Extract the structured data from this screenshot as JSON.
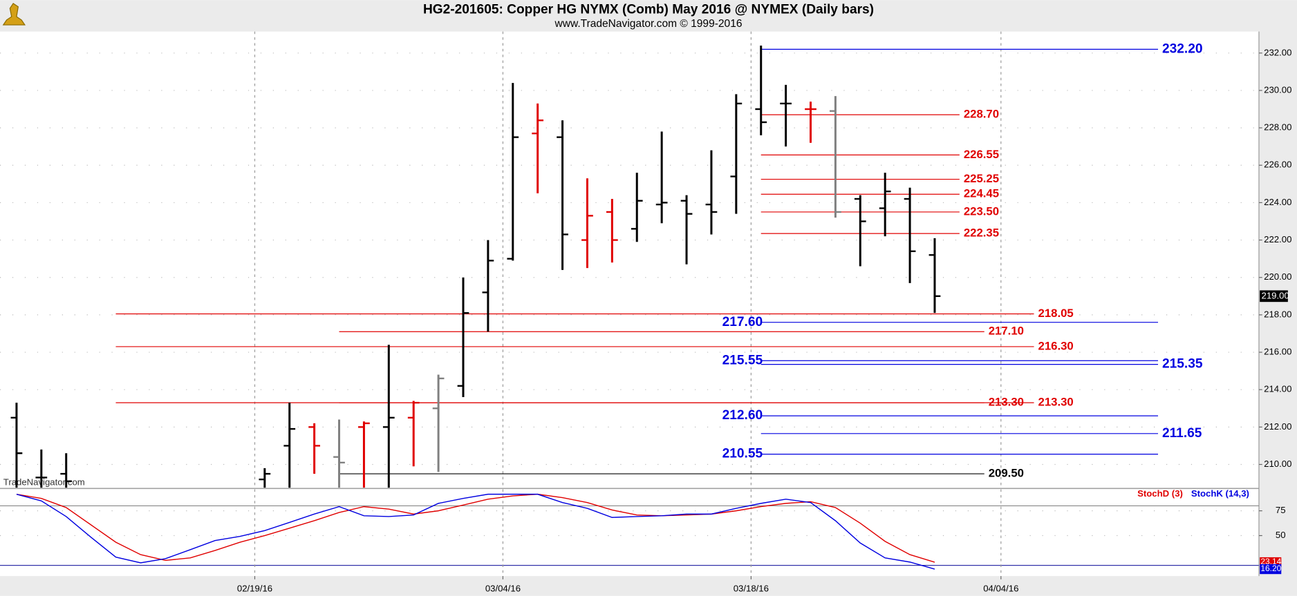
{
  "chart_data": [
    {
      "type": "ohlc",
      "title": "HG2-201605:  Copper HG NYMX (Comb) May 2016 @ NYMEX  (Daily bars)",
      "subtitle": "www.TradeNavigator.com © 1999-2016",
      "watermark": "TradeNavigator.com",
      "x": [
        0,
        1,
        2,
        10,
        11,
        12,
        13,
        14,
        15,
        16,
        17,
        18,
        19,
        20,
        21,
        22,
        23,
        24,
        25,
        26,
        27,
        28,
        29,
        30,
        31,
        32,
        33,
        34,
        35,
        36,
        37
      ],
      "open": [
        212.5,
        209.3,
        209.5,
        209.2,
        211.0,
        212.0,
        210.4,
        212.0,
        212.0,
        212.5,
        213.0,
        214.2,
        219.2,
        221.0,
        227.7,
        227.5,
        222.0,
        223.5,
        222.6,
        223.9,
        224.1,
        223.9,
        225.4,
        229.0,
        229.3,
        229.0,
        228.9,
        224.2,
        223.7,
        224.2,
        221.2
      ],
      "high": [
        213.3,
        210.8,
        210.6,
        209.8,
        213.3,
        212.2,
        212.4,
        212.3,
        216.4,
        213.4,
        214.8,
        220.0,
        222.0,
        230.4,
        229.3,
        228.4,
        225.3,
        224.2,
        225.6,
        227.8,
        224.4,
        226.8,
        229.8,
        232.4,
        230.3,
        229.4,
        229.7,
        224.4,
        225.6,
        224.8,
        222.1
      ],
      "low": [
        208.5,
        208.5,
        208.5,
        208.5,
        208.5,
        209.5,
        208.5,
        208.5,
        208.5,
        209.9,
        209.6,
        213.6,
        217.1,
        220.9,
        224.5,
        220.4,
        220.5,
        220.8,
        221.9,
        222.9,
        220.7,
        222.3,
        223.4,
        227.6,
        227.0,
        227.2,
        223.2,
        220.6,
        222.2,
        219.7,
        218.1
      ],
      "close": [
        210.6,
        209.3,
        209.1,
        209.5,
        211.9,
        211.0,
        210.1,
        212.2,
        212.5,
        213.3,
        214.6,
        218.1,
        220.9,
        227.5,
        228.4,
        222.3,
        223.3,
        222.0,
        224.1,
        224.0,
        223.4,
        223.5,
        229.3,
        228.3,
        229.3,
        229.0,
        223.5,
        223.0,
        224.6,
        221.4,
        219.0
      ],
      "colors": [
        "#000",
        "#000",
        "#000",
        "#000",
        "#000",
        "#e00000",
        "#808080",
        "#e00000",
        "#000",
        "#e00000",
        "#808080",
        "#000",
        "#000",
        "#000",
        "#e00000",
        "#000",
        "#e00000",
        "#e00000",
        "#000",
        "#000",
        "#000",
        "#000",
        "#000",
        "#000",
        "#000",
        "#e00000",
        "#808080",
        "#000",
        "#000",
        "#000",
        "#000"
      ],
      "xlim": [
        -0.6667,
        50.0667
      ],
      "ylim": [
        208.76,
        233.15
      ],
      "yticks": [
        {
          "value": 210,
          "label": "210.00"
        },
        {
          "value": 212,
          "label": "212.00"
        },
        {
          "value": 214,
          "label": "214.00"
        },
        {
          "value": 216,
          "label": "216.00"
        },
        {
          "value": 218,
          "label": "218.00"
        },
        {
          "value": 220,
          "label": "220.00"
        },
        {
          "value": 222,
          "label": "222.00"
        },
        {
          "value": 224,
          "label": "224.00"
        },
        {
          "value": 226,
          "label": "226.00"
        },
        {
          "value": 228,
          "label": "228.00"
        },
        {
          "value": 230,
          "label": "230.00"
        },
        {
          "value": 232,
          "label": "232.00"
        }
      ],
      "last_price": {
        "value": 219,
        "label": "219.00"
      },
      "levels": [
        {
          "value": 232.2,
          "label": "232.20",
          "color": "#0000e0",
          "from": 30,
          "to": 46,
          "label_side": "right"
        },
        {
          "value": 228.7,
          "label": "228.70",
          "color": "#e00000",
          "from": 30,
          "to": 38,
          "label_side": "right"
        },
        {
          "value": 226.55,
          "label": "226.55",
          "color": "#e00000",
          "from": 30,
          "to": 38,
          "label_side": "right"
        },
        {
          "value": 225.25,
          "label": "225.25",
          "color": "#e00000",
          "from": 30,
          "to": 38,
          "label_side": "right"
        },
        {
          "value": 224.45,
          "label": "224.45",
          "color": "#e00000",
          "from": 30,
          "to": 38,
          "label_side": "right"
        },
        {
          "value": 223.5,
          "label": "223.50",
          "color": "#e00000",
          "from": 30,
          "to": 38,
          "label_side": "right"
        },
        {
          "value": 222.35,
          "label": "222.35",
          "color": "#e00000",
          "from": 30,
          "to": 38,
          "label_side": "right"
        },
        {
          "value": 218.05,
          "label": "218.05",
          "color": "#e00000",
          "from": 4,
          "to": 41,
          "label_side": "right"
        },
        {
          "value": 217.6,
          "label": "217.60",
          "color": "#0000e0",
          "from": 30,
          "to": 46,
          "label_side": "left"
        },
        {
          "value": 217.1,
          "label": "217.10",
          "color": "#e00000",
          "from": 13,
          "to": 39,
          "label_side": "right"
        },
        {
          "value": 216.3,
          "label": "216.30",
          "color": "#e00000",
          "from": 4,
          "to": 41,
          "label_side": "right"
        },
        {
          "value": 215.55,
          "label": "215.55",
          "color": "#0000e0",
          "from": 30,
          "to": 46,
          "label_side": "left"
        },
        {
          "value": 215.35,
          "label": "215.35",
          "color": "#0000e0",
          "from": 30,
          "to": 46,
          "label_side": "right"
        },
        {
          "value": 213.3,
          "label": "213.30",
          "color": "#e00000",
          "from": 13,
          "to": 39,
          "label_side": "right"
        },
        {
          "value": 213.3,
          "label": "213.30",
          "color": "#e00000",
          "from": 4,
          "to": 41,
          "label_side": "right"
        },
        {
          "value": 212.6,
          "label": "212.60",
          "color": "#0000e0",
          "from": 30,
          "to": 46,
          "label_side": "left"
        },
        {
          "value": 211.65,
          "label": "211.65",
          "color": "#0000e0",
          "from": 30,
          "to": 46,
          "label_side": "right"
        },
        {
          "value": 210.55,
          "label": "210.55",
          "color": "#0000e0",
          "from": 30,
          "to": 46,
          "label_side": "left"
        },
        {
          "value": 209.5,
          "label": "209.50",
          "color": "#000000",
          "from": 13,
          "to": 39,
          "label_side": "right"
        }
      ]
    },
    {
      "type": "line",
      "x": [
        0,
        1,
        2,
        3,
        4,
        5,
        6,
        7,
        8,
        9,
        10,
        11,
        12,
        13,
        14,
        15,
        16,
        17,
        18,
        19,
        20,
        21,
        22,
        23,
        24,
        25,
        26,
        27,
        28,
        29,
        30,
        31,
        32,
        33,
        34,
        35,
        36,
        37
      ],
      "series": [
        {
          "name": "StochD (3)",
          "color": "#e00000",
          "last_label": "23.14",
          "values": [
            91.7,
            87.5,
            78.3,
            60.8,
            43.3,
            30.8,
            25,
            27.5,
            35,
            43.3,
            50,
            57.5,
            65,
            73.3,
            79.2,
            76.7,
            71.7,
            75,
            80.8,
            86.7,
            90,
            91.7,
            88.3,
            83.3,
            75.8,
            70.8,
            70,
            70.8,
            71.7,
            75,
            79.2,
            82.5,
            84.2,
            78.3,
            62.5,
            44.2,
            30.8,
            23.14
          ]
        },
        {
          "name": "StochK (14,3)",
          "color": "#0000e0",
          "last_label": "16.20",
          "values": [
            91.7,
            85,
            69.2,
            48.3,
            28.3,
            22.5,
            26.7,
            35.8,
            45,
            49.2,
            55,
            63.3,
            71.7,
            79.2,
            70,
            69.2,
            70.8,
            82.5,
            87.5,
            91.7,
            91.7,
            91.7,
            83.3,
            77.5,
            68.3,
            69.2,
            70,
            71.7,
            71.7,
            77.5,
            82.5,
            86.7,
            83.3,
            65,
            42.5,
            27.5,
            23.3,
            16.2
          ]
        }
      ],
      "xlim": [
        -0.6667,
        50.0667
      ],
      "ylim": [
        9.2,
        96.7
      ],
      "yticks": [
        75,
        50
      ],
      "levels": [
        80,
        20
      ],
      "xticks": [
        {
          "value": 9.6,
          "label": "02/19/16"
        },
        {
          "value": 19.6,
          "label": "03/04/16"
        },
        {
          "value": 29.6,
          "label": "03/18/16"
        },
        {
          "value": 39.67,
          "label": "04/04/16"
        }
      ]
    }
  ]
}
